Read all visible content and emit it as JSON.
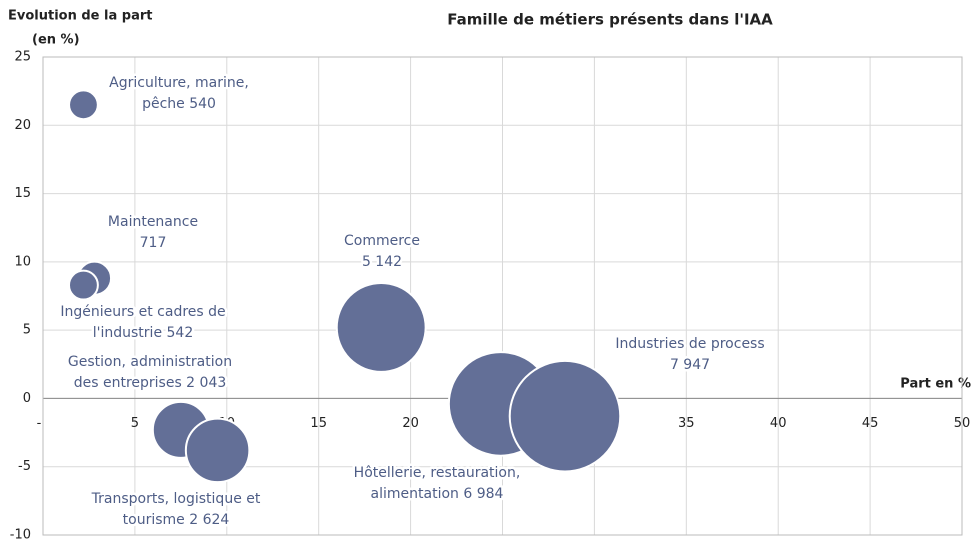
{
  "chart_data": {
    "type": "bubble",
    "title": "Famille de métiers présents dans l'IAA",
    "y_label": [
      "Evolution de la part",
      "(en %)"
    ],
    "x_label": "Part en %",
    "color": "#636f97",
    "grid": true,
    "xlim": [
      0,
      50
    ],
    "xticks": [
      {
        "value": 0,
        "label": "-"
      },
      5,
      10,
      15,
      20,
      25,
      30,
      35,
      40,
      45,
      50
    ],
    "ylim": [
      -10,
      25
    ],
    "yticks": [
      25,
      20,
      15,
      10,
      5,
      0,
      -5,
      -10
    ],
    "labels": [
      [
        "Agriculture, marine,",
        "pêche 540"
      ],
      [
        "Maintenance",
        "717"
      ],
      [
        "Ingénieurs et cadres de",
        "l'industrie 542"
      ],
      [
        "Gestion, administration",
        "des entreprises 2 043"
      ],
      [
        "Transports, logistique et",
        "tourisme 2 624"
      ],
      [
        "Commerce",
        "5 142"
      ],
      [
        "Hôtellerie, restauration,",
        "alimentation 6 984"
      ],
      [
        "Industries de process",
        "7 947"
      ]
    ],
    "x": [
      2.2,
      2.8,
      2.2,
      7.5,
      9.5,
      18.4,
      24.9,
      28.4
    ],
    "y": [
      21.5,
      8.8,
      8.3,
      -2.3,
      -3.8,
      5.2,
      -0.4,
      -1.3
    ],
    "sizes": [
      540,
      717,
      542,
      2043,
      2624,
      5142,
      6984,
      7947
    ]
  }
}
